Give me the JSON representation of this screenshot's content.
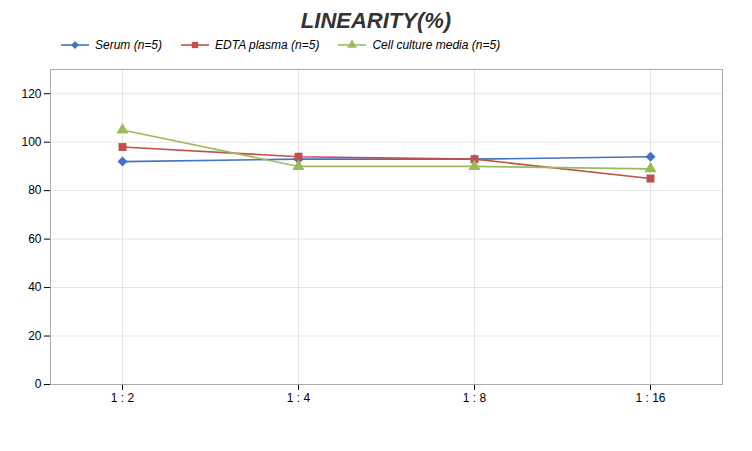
{
  "chart_data": {
    "type": "line",
    "title": "LINEARITY(%)",
    "categories": [
      "1 : 2",
      "1 : 4",
      "1 : 8",
      "1 : 16"
    ],
    "series": [
      {
        "name": "Serum (n=5)",
        "color": "#4472C4",
        "marker": "diamond",
        "values": [
          92,
          93,
          93,
          94
        ]
      },
      {
        "name": "EDTA plasma (n=5)",
        "color": "#C0504D",
        "marker": "square",
        "values": [
          98,
          94,
          93,
          85
        ]
      },
      {
        "name": "Cell culture media (n=5)",
        "color": "#9BBB59",
        "marker": "triangle",
        "values": [
          105,
          90,
          90,
          89
        ]
      }
    ],
    "ylim": [
      0,
      130
    ],
    "yticks": [
      0,
      20,
      40,
      60,
      80,
      100,
      120
    ],
    "grid": true,
    "legend": "upper left"
  }
}
